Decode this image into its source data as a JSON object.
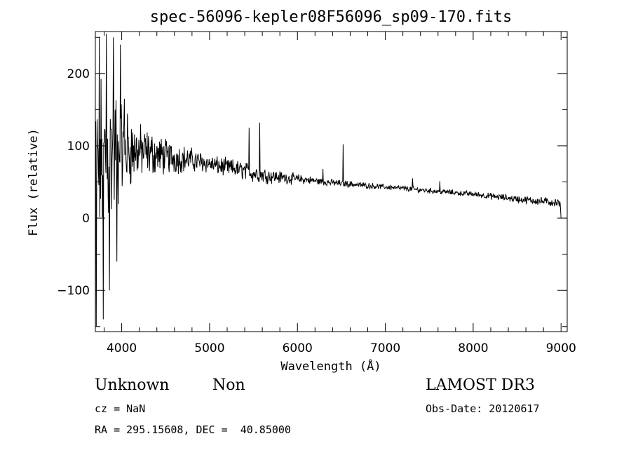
{
  "chart_data": {
    "type": "line",
    "title": "spec-56096-kepler08F56096_sp09-170.fits",
    "xlabel": "Wavelength (Å)",
    "ylabel": "Flux (relative)",
    "xlim": [
      3700,
      9070
    ],
    "ylim": [
      -157,
      258
    ],
    "xticks": [
      4000,
      5000,
      6000,
      7000,
      8000,
      9000
    ],
    "yticks": [
      -100,
      0,
      100,
      200
    ],
    "grid": false,
    "series": [
      {
        "color": "#000000",
        "anchors": [
          [
            3700,
            60
          ],
          [
            3760,
            80
          ],
          [
            3850,
            85
          ],
          [
            3950,
            92
          ],
          [
            4050,
            95
          ],
          [
            4150,
            93
          ],
          [
            4300,
            90
          ],
          [
            4500,
            85
          ],
          [
            4700,
            82
          ],
          [
            4900,
            78
          ],
          [
            5100,
            72
          ],
          [
            5300,
            68
          ],
          [
            5500,
            62
          ],
          [
            5700,
            58
          ],
          [
            5900,
            55
          ],
          [
            6100,
            53
          ],
          [
            6300,
            50
          ],
          [
            6500,
            48
          ],
          [
            6800,
            45
          ],
          [
            7100,
            42
          ],
          [
            7400,
            39
          ],
          [
            7700,
            36
          ],
          [
            8000,
            33
          ],
          [
            8300,
            29
          ],
          [
            8600,
            25
          ],
          [
            8900,
            22
          ],
          [
            8990,
            20
          ],
          [
            9000,
            0
          ]
        ],
        "noise": [
          [
            3700,
            95
          ],
          [
            3850,
            90
          ],
          [
            3950,
            70
          ],
          [
            4050,
            45
          ],
          [
            4200,
            30
          ],
          [
            4400,
            22
          ],
          [
            4700,
            15
          ],
          [
            5000,
            10
          ],
          [
            5500,
            10
          ],
          [
            5800,
            7
          ],
          [
            6200,
            4
          ],
          [
            7000,
            3
          ],
          [
            8000,
            3
          ],
          [
            8500,
            4
          ],
          [
            9000,
            5
          ]
        ],
        "spikes": [
          [
            3710,
            -150
          ],
          [
            3745,
            250
          ],
          [
            3790,
            -140
          ],
          [
            3825,
            255
          ],
          [
            3860,
            -100
          ],
          [
            3905,
            250
          ],
          [
            3945,
            -60
          ],
          [
            3985,
            240
          ],
          [
            4030,
            165
          ],
          [
            5450,
            125
          ],
          [
            5570,
            132
          ],
          [
            6290,
            68
          ],
          [
            6520,
            102
          ],
          [
            7310,
            55
          ],
          [
            7620,
            51
          ]
        ]
      }
    ]
  },
  "info": {
    "object_class": "Unknown",
    "subclass": "Non",
    "survey": "LAMOST DR3",
    "cz": "cz = NaN",
    "obs_date": "Obs-Date: 20120617",
    "coords": "RA = 295.15608, DEC =  40.85000"
  }
}
